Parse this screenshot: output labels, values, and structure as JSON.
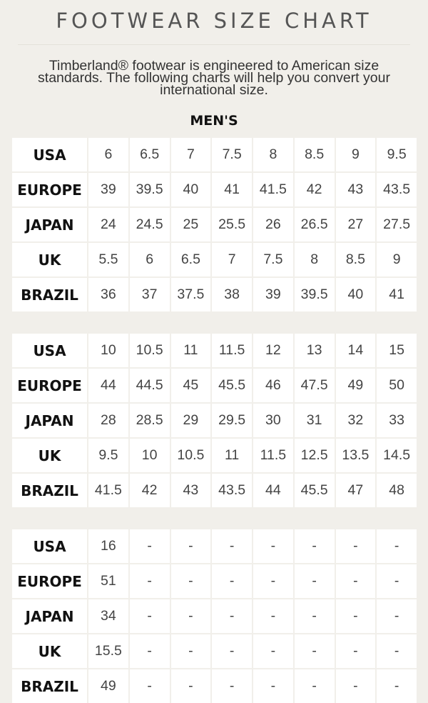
{
  "header": {
    "title": "FOOTWEAR SIZE CHART",
    "intro": "Timberland® footwear is engineered to American size standards. The following charts will help you convert your international size.",
    "section": "MEN'S"
  },
  "chart_data": {
    "type": "table",
    "title": "FOOTWEAR SIZE CHART",
    "subtitle": "MEN'S",
    "tables": [
      {
        "rows": [
          {
            "label": "USA",
            "values": [
              "6",
              "6.5",
              "7",
              "7.5",
              "8",
              "8.5",
              "9",
              "9.5"
            ]
          },
          {
            "label": "EUROPE",
            "values": [
              "39",
              "39.5",
              "40",
              "41",
              "41.5",
              "42",
              "43",
              "43.5"
            ]
          },
          {
            "label": "JAPAN",
            "values": [
              "24",
              "24.5",
              "25",
              "25.5",
              "26",
              "26.5",
              "27",
              "27.5"
            ]
          },
          {
            "label": "UK",
            "values": [
              "5.5",
              "6",
              "6.5",
              "7",
              "7.5",
              "8",
              "8.5",
              "9"
            ]
          },
          {
            "label": "BRAZIL",
            "values": [
              "36",
              "37",
              "37.5",
              "38",
              "39",
              "39.5",
              "40",
              "41"
            ]
          }
        ]
      },
      {
        "rows": [
          {
            "label": "USA",
            "values": [
              "10",
              "10.5",
              "11",
              "11.5",
              "12",
              "13",
              "14",
              "15"
            ]
          },
          {
            "label": "EUROPE",
            "values": [
              "44",
              "44.5",
              "45",
              "45.5",
              "46",
              "47.5",
              "49",
              "50"
            ]
          },
          {
            "label": "JAPAN",
            "values": [
              "28",
              "28.5",
              "29",
              "29.5",
              "30",
              "31",
              "32",
              "33"
            ]
          },
          {
            "label": "UK",
            "values": [
              "9.5",
              "10",
              "10.5",
              "11",
              "11.5",
              "12.5",
              "13.5",
              "14.5"
            ]
          },
          {
            "label": "BRAZIL",
            "values": [
              "41.5",
              "42",
              "43",
              "43.5",
              "44",
              "45.5",
              "47",
              "48"
            ]
          }
        ]
      },
      {
        "rows": [
          {
            "label": "USA",
            "values": [
              "16",
              "-",
              "-",
              "-",
              "-",
              "-",
              "-",
              "-"
            ]
          },
          {
            "label": "EUROPE",
            "values": [
              "51",
              "-",
              "-",
              "-",
              "-",
              "-",
              "-",
              "-"
            ]
          },
          {
            "label": "JAPAN",
            "values": [
              "34",
              "-",
              "-",
              "-",
              "-",
              "-",
              "-",
              "-"
            ]
          },
          {
            "label": "UK",
            "values": [
              "15.5",
              "-",
              "-",
              "-",
              "-",
              "-",
              "-",
              "-"
            ]
          },
          {
            "label": "BRAZIL",
            "values": [
              "49",
              "-",
              "-",
              "-",
              "-",
              "-",
              "-",
              "-"
            ]
          }
        ]
      }
    ]
  }
}
